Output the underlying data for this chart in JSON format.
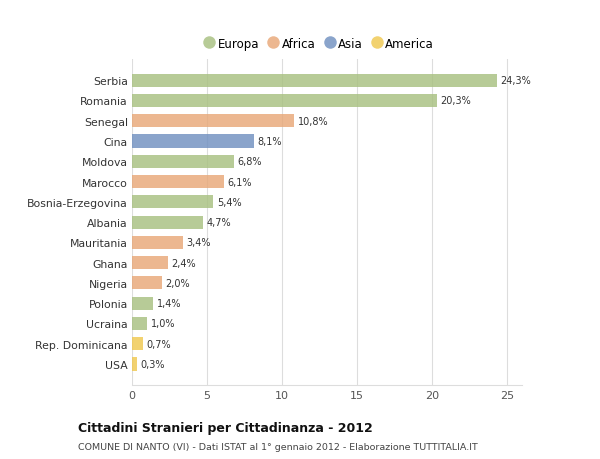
{
  "categories": [
    "Serbia",
    "Romania",
    "Senegal",
    "Cina",
    "Moldova",
    "Marocco",
    "Bosnia-Erzegovina",
    "Albania",
    "Mauritania",
    "Ghana",
    "Nigeria",
    "Polonia",
    "Ucraina",
    "Rep. Dominicana",
    "USA"
  ],
  "values": [
    24.3,
    20.3,
    10.8,
    8.1,
    6.8,
    6.1,
    5.4,
    4.7,
    3.4,
    2.4,
    2.0,
    1.4,
    1.0,
    0.7,
    0.3
  ],
  "labels": [
    "24,3%",
    "20,3%",
    "10,8%",
    "8,1%",
    "6,8%",
    "6,1%",
    "5,4%",
    "4,7%",
    "3,4%",
    "2,4%",
    "2,0%",
    "1,4%",
    "1,0%",
    "0,7%",
    "0,3%"
  ],
  "colors": [
    "#a8c080",
    "#a8c080",
    "#e8a878",
    "#7090c0",
    "#a8c080",
    "#e8a878",
    "#a8c080",
    "#a8c080",
    "#e8a878",
    "#e8a878",
    "#e8a878",
    "#a8c080",
    "#a8c080",
    "#f0c850",
    "#f0c850"
  ],
  "legend_labels": [
    "Europa",
    "Africa",
    "Asia",
    "America"
  ],
  "legend_colors": [
    "#a8c080",
    "#e8a878",
    "#7090c0",
    "#f0c850"
  ],
  "title": "Cittadini Stranieri per Cittadinanza - 2012",
  "subtitle": "COMUNE DI NANTO (VI) - Dati ISTAT al 1° gennaio 2012 - Elaborazione TUTTITALIA.IT",
  "xlim": [
    0,
    26
  ],
  "xticks": [
    0,
    5,
    10,
    15,
    20,
    25
  ],
  "background_color": "#ffffff",
  "bar_alpha": 0.82,
  "grid_color": "#dddddd"
}
